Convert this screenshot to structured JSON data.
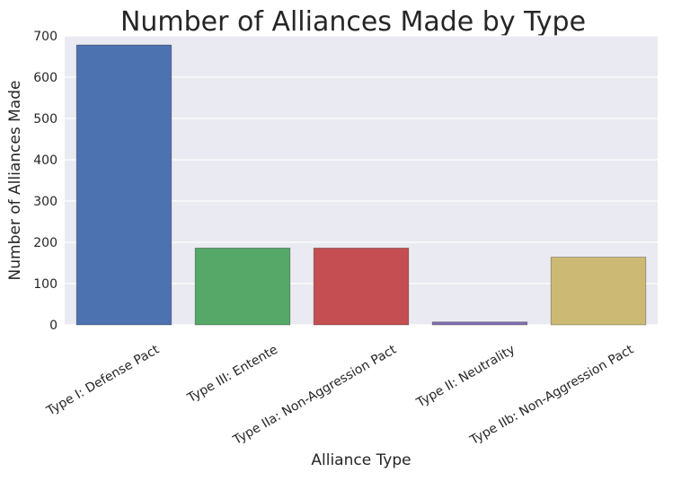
{
  "chart_data": {
    "type": "bar",
    "title": "Number of Alliances Made by Type",
    "xlabel": "Alliance Type",
    "ylabel": "Number of Alliances Made",
    "categories": [
      "Type I: Defense Pact",
      "Type III: Entente",
      "Type IIa: Non-Aggression Pact",
      "Type II: Neutrality",
      "Type IIb: Non-Aggression Pact"
    ],
    "values": [
      678,
      186,
      186,
      7,
      164
    ],
    "ylim": [
      0,
      700
    ],
    "yticks": [
      0,
      100,
      200,
      300,
      400,
      500,
      600,
      700
    ],
    "grid": true,
    "colors": {
      "background": "#EAEAF2",
      "grid": "#FFFFFF",
      "bars": [
        "#4C72B0",
        "#55A868",
        "#C44E52",
        "#8172B2",
        "#CCB974"
      ],
      "text": "#262626"
    }
  }
}
